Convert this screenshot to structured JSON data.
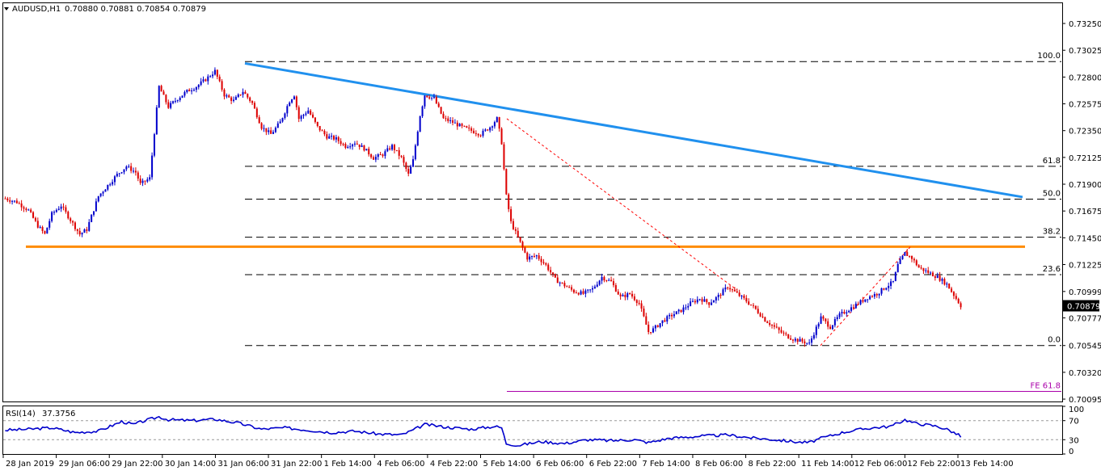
{
  "chart_data": {
    "type": "candlestick",
    "main": {
      "title": "AUDUSD,H1",
      "ohlc_label": "0.70880 0.70881 0.70854 0.70879",
      "ylim": [
        0.70075,
        0.7342
      ],
      "y_ticks": [
        "0.73250",
        "0.73025",
        "0.72800",
        "0.72575",
        "0.72350",
        "0.72125",
        "0.71900",
        "0.71675",
        "0.71450",
        "0.71225",
        "0.70999",
        "0.70777",
        "0.70545",
        "0.70320",
        "0.70095"
      ],
      "current_price": "0.70879",
      "current_value": 0.70879,
      "x_labels": [
        "28 Jan 2019",
        "29 Jan 06:00",
        "29 Jan 22:00",
        "30 Jan 14:00",
        "31 Jan 06:00",
        "31 Jan 22:00",
        "1 Feb 14:00",
        "4 Feb 06:00",
        "4 Feb 22:00",
        "5 Feb 14:00",
        "6 Feb 06:00",
        "6 Feb 22:00",
        "7 Feb 14:00",
        "8 Feb 06:00",
        "8 Feb 22:00",
        "11 Feb 14:00",
        "12 Feb 06:00",
        "12 Feb 22:00",
        "13 Feb 14:00"
      ],
      "price_path": [
        [
          0,
          0.7178
        ],
        [
          5,
          0.7175
        ],
        [
          10,
          0.7168
        ],
        [
          14,
          0.7155
        ],
        [
          17,
          0.7148
        ],
        [
          20,
          0.7165
        ],
        [
          24,
          0.7172
        ],
        [
          28,
          0.716
        ],
        [
          32,
          0.7148
        ],
        [
          35,
          0.7152
        ],
        [
          40,
          0.718
        ],
        [
          48,
          0.7198
        ],
        [
          52,
          0.7205
        ],
        [
          56,
          0.72
        ],
        [
          58,
          0.719
        ],
        [
          62,
          0.7195
        ],
        [
          66,
          0.7272
        ],
        [
          70,
          0.7255
        ],
        [
          74,
          0.7262
        ],
        [
          78,
          0.7268
        ],
        [
          82,
          0.7272
        ],
        [
          86,
          0.7278
        ],
        [
          90,
          0.7285
        ],
        [
          94,
          0.7265
        ],
        [
          98,
          0.726
        ],
        [
          102,
          0.7268
        ],
        [
          106,
          0.7258
        ],
        [
          110,
          0.7238
        ],
        [
          114,
          0.7232
        ],
        [
          118,
          0.7242
        ],
        [
          122,
          0.726
        ],
        [
          124,
          0.7265
        ],
        [
          126,
          0.7245
        ],
        [
          130,
          0.7252
        ],
        [
          134,
          0.7238
        ],
        [
          138,
          0.723
        ],
        [
          142,
          0.7228
        ],
        [
          146,
          0.7222
        ],
        [
          150,
          0.7225
        ],
        [
          154,
          0.722
        ],
        [
          158,
          0.7212
        ],
        [
          162,
          0.7215
        ],
        [
          166,
          0.7222
        ],
        [
          170,
          0.7212
        ],
        [
          173,
          0.7198
        ],
        [
          175,
          0.721
        ],
        [
          178,
          0.7248
        ],
        [
          180,
          0.7265
        ],
        [
          184,
          0.7262
        ],
        [
          188,
          0.7245
        ],
        [
          192,
          0.7242
        ],
        [
          196,
          0.7238
        ],
        [
          200,
          0.7235
        ],
        [
          204,
          0.7232
        ],
        [
          208,
          0.7238
        ],
        [
          211,
          0.7245
        ],
        [
          213,
          0.7225
        ],
        [
          215,
          0.718
        ],
        [
          217,
          0.7158
        ],
        [
          220,
          0.7145
        ],
        [
          224,
          0.7128
        ],
        [
          228,
          0.713
        ],
        [
          232,
          0.7122
        ],
        [
          236,
          0.711
        ],
        [
          240,
          0.7105
        ],
        [
          244,
          0.71
        ],
        [
          248,
          0.7098
        ],
        [
          252,
          0.7102
        ],
        [
          256,
          0.7112
        ],
        [
          260,
          0.7108
        ],
        [
          264,
          0.7095
        ],
        [
          268,
          0.7098
        ],
        [
          272,
          0.709
        ],
        [
          276,
          0.7066
        ],
        [
          278,
          0.7068
        ],
        [
          282,
          0.7075
        ],
        [
          286,
          0.708
        ],
        [
          290,
          0.7084
        ],
        [
          294,
          0.709
        ],
        [
          298,
          0.7094
        ],
        [
          302,
          0.709
        ],
        [
          306,
          0.7096
        ],
        [
          310,
          0.7104
        ],
        [
          314,
          0.7098
        ],
        [
          318,
          0.7092
        ],
        [
          322,
          0.7085
        ],
        [
          326,
          0.7076
        ],
        [
          330,
          0.707
        ],
        [
          334,
          0.7064
        ],
        [
          338,
          0.706
        ],
        [
          342,
          0.7058
        ],
        [
          345,
          0.7056
        ],
        [
          347,
          0.7065
        ],
        [
          350,
          0.7078
        ],
        [
          354,
          0.707
        ],
        [
          358,
          0.708
        ],
        [
          362,
          0.7085
        ],
        [
          366,
          0.709
        ],
        [
          370,
          0.7095
        ],
        [
          374,
          0.7098
        ],
        [
          378,
          0.7104
        ],
        [
          381,
          0.7108
        ],
        [
          383,
          0.7122
        ],
        [
          386,
          0.7132
        ],
        [
          389,
          0.7128
        ],
        [
          392,
          0.712
        ],
        [
          396,
          0.7116
        ],
        [
          400,
          0.7112
        ],
        [
          404,
          0.7106
        ],
        [
          408,
          0.7094
        ],
        [
          410,
          0.7088
        ]
      ],
      "trendline": [
        [
          0.72915,
          "31 Jan 06:00"
        ],
        [
          0.71792,
          "13 Feb 14:00"
        ]
      ],
      "support_level": 0.71375,
      "fib_levels": [
        {
          "label": "100.0",
          "value": 0.7293
        },
        {
          "label": "61.8",
          "value": 0.7205
        },
        {
          "label": "50.0",
          "value": 0.71775
        },
        {
          "label": "38.2",
          "value": 0.71455
        },
        {
          "label": "23.6",
          "value": 0.7114
        },
        {
          "label": "0.0",
          "value": 0.70545
        },
        {
          "label": "FE 61.8",
          "value": 0.7016
        }
      ]
    },
    "rsi": {
      "title": "RSI(14)",
      "value_label": "37.3756",
      "ylim": [
        0,
        100
      ],
      "y_ticks": [
        "100",
        "70",
        "30",
        "0"
      ],
      "levels": [
        70,
        30
      ],
      "path": [
        [
          0,
          50
        ],
        [
          10,
          52
        ],
        [
          20,
          55
        ],
        [
          30,
          45
        ],
        [
          40,
          48
        ],
        [
          50,
          68
        ],
        [
          55,
          62
        ],
        [
          60,
          70
        ],
        [
          66,
          78
        ],
        [
          70,
          72
        ],
        [
          80,
          70
        ],
        [
          90,
          73
        ],
        [
          100,
          65
        ],
        [
          110,
          52
        ],
        [
          120,
          55
        ],
        [
          130,
          50
        ],
        [
          140,
          45
        ],
        [
          150,
          48
        ],
        [
          160,
          42
        ],
        [
          170,
          40
        ],
        [
          175,
          50
        ],
        [
          180,
          62
        ],
        [
          190,
          56
        ],
        [
          200,
          52
        ],
        [
          210,
          58
        ],
        [
          213,
          55
        ],
        [
          215,
          22
        ],
        [
          220,
          18
        ],
        [
          230,
          26
        ],
        [
          240,
          22
        ],
        [
          250,
          30
        ],
        [
          260,
          28
        ],
        [
          270,
          30
        ],
        [
          276,
          24
        ],
        [
          285,
          33
        ],
        [
          300,
          38
        ],
        [
          310,
          40
        ],
        [
          320,
          34
        ],
        [
          330,
          30
        ],
        [
          340,
          25
        ],
        [
          345,
          24
        ],
        [
          350,
          33
        ],
        [
          360,
          46
        ],
        [
          370,
          54
        ],
        [
          380,
          58
        ],
        [
          386,
          72
        ],
        [
          390,
          65
        ],
        [
          400,
          58
        ],
        [
          405,
          50
        ],
        [
          410,
          37
        ]
      ]
    }
  }
}
